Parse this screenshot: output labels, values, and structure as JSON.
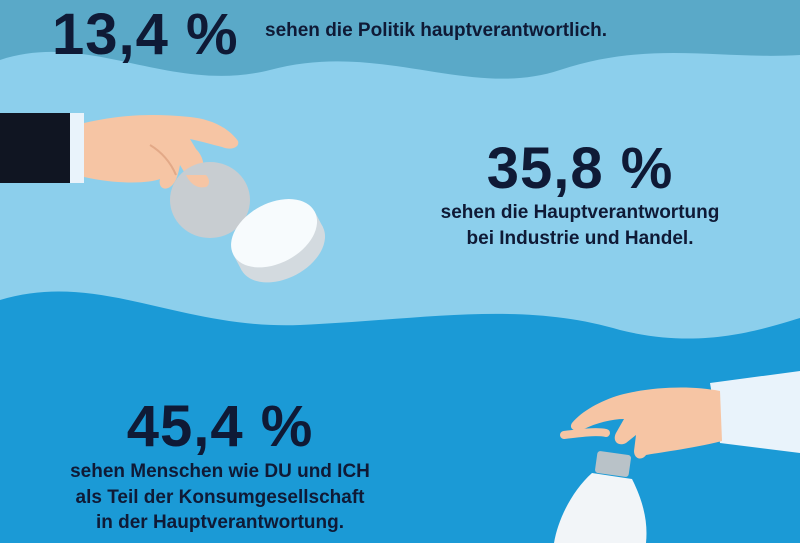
{
  "colors": {
    "band_top": "#5aa9c8",
    "band_middle": "#8ccfec",
    "band_bottom": "#1b9ad6",
    "text": "#0f1a36",
    "skin": "#f6c5a4",
    "sleeve_dark": "#101522",
    "sleeve_light": "#e9f3fb",
    "pill": "#e8eef2"
  },
  "stats": [
    {
      "value": "13,4 %",
      "lines": [
        "sehen die Politik hauptverantwortlich."
      ]
    },
    {
      "value": "35,8 %",
      "lines": [
        "sehen die Hauptverantwortung",
        "bei Industrie und Handel."
      ]
    },
    {
      "value": "45,4 %",
      "lines": [
        "sehen Menschen wie DU und ICH",
        "als Teil der Konsumgesellschaft",
        "in der Hauptverantwortung."
      ]
    }
  ],
  "illustrations": {
    "top_left": "hand-holding-pill-icon",
    "bottom_right": "hand-holding-bottle-icon"
  }
}
